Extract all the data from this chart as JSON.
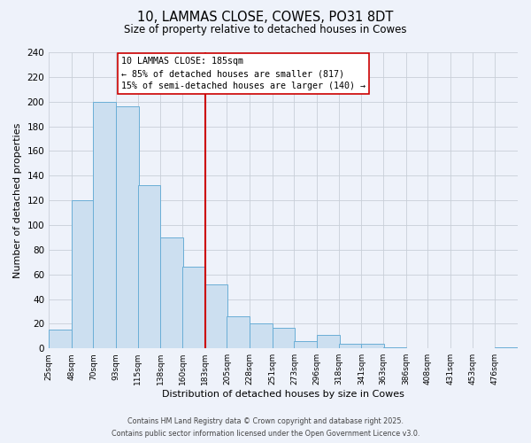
{
  "title": "10, LAMMAS CLOSE, COWES, PO31 8DT",
  "subtitle": "Size of property relative to detached houses in Cowes",
  "xlabel": "Distribution of detached houses by size in Cowes",
  "ylabel": "Number of detached properties",
  "bin_labels": [
    "25sqm",
    "48sqm",
    "70sqm",
    "93sqm",
    "115sqm",
    "138sqm",
    "160sqm",
    "183sqm",
    "205sqm",
    "228sqm",
    "251sqm",
    "273sqm",
    "296sqm",
    "318sqm",
    "341sqm",
    "363sqm",
    "386sqm",
    "408sqm",
    "431sqm",
    "453sqm",
    "476sqm"
  ],
  "bin_left_edges": [
    25,
    48,
    70,
    93,
    115,
    138,
    160,
    183,
    205,
    228,
    251,
    273,
    296,
    318,
    341,
    363,
    386,
    408,
    431,
    453,
    476
  ],
  "bar_heights": [
    15,
    120,
    200,
    196,
    132,
    90,
    66,
    52,
    26,
    20,
    17,
    6,
    11,
    4,
    4,
    1,
    0,
    0,
    0,
    0,
    1
  ],
  "bar_color": "#ccdff0",
  "bar_edge_color": "#6aaed6",
  "vline_x": 183,
  "vline_color": "#cc0000",
  "annotation_title": "10 LAMMAS CLOSE: 185sqm",
  "annotation_line1": "← 85% of detached houses are smaller (817)",
  "annotation_line2": "15% of semi-detached houses are larger (140) →",
  "annotation_box_facecolor": "#ffffff",
  "annotation_box_edgecolor": "#cc0000",
  "ylim": [
    0,
    240
  ],
  "yticks": [
    0,
    20,
    40,
    60,
    80,
    100,
    120,
    140,
    160,
    180,
    200,
    220,
    240
  ],
  "footer1": "Contains HM Land Registry data © Crown copyright and database right 2025.",
  "footer2": "Contains public sector information licensed under the Open Government Licence v3.0.",
  "bg_color": "#eef2fa",
  "grid_color": "#c8cfd8"
}
